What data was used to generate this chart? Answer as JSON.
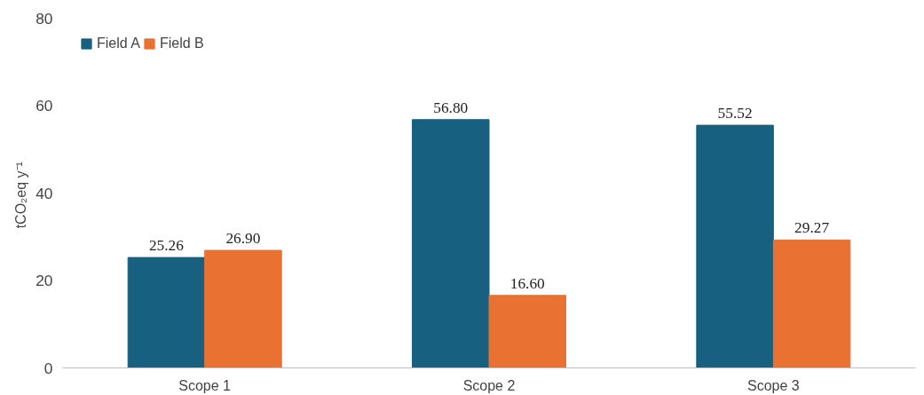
{
  "chart_data": {
    "type": "bar",
    "ylabel": "tCO₂eq  y⁻¹",
    "categories": [
      "Scope 1",
      "Scope 2",
      "Scope 3"
    ],
    "series": [
      {
        "name": "Field A",
        "color": "#17607f",
        "values": [
          25.26,
          56.8,
          55.52
        ],
        "value_labels": [
          "25.26",
          "56.80",
          "55.52"
        ]
      },
      {
        "name": "Field B",
        "color": "#e97132",
        "values": [
          26.9,
          16.6,
          29.27
        ],
        "value_labels": [
          "26.90",
          "16.60",
          "29.27"
        ]
      }
    ],
    "ylim": [
      0,
      80
    ],
    "yticks": [
      0,
      20,
      40,
      60,
      80
    ],
    "grid": false,
    "legend": "top left"
  }
}
